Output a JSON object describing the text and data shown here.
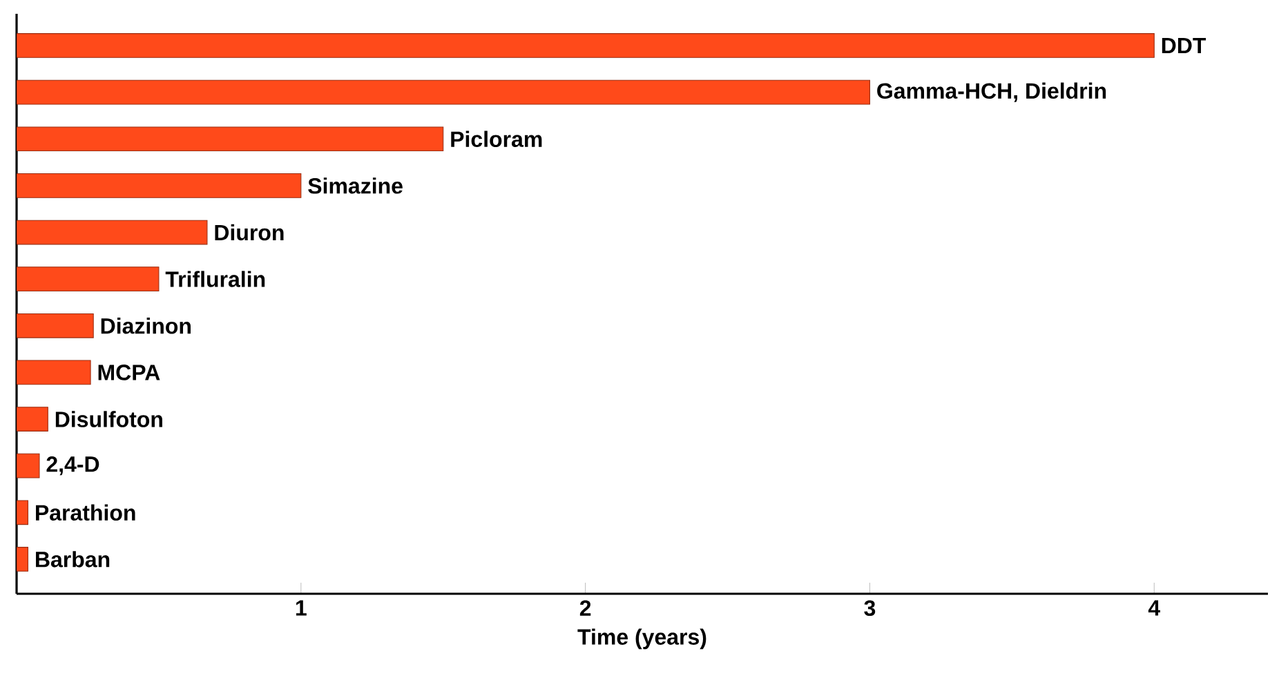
{
  "chart_data": {
    "type": "bar",
    "orientation": "horizontal",
    "xlabel": "Time (years)",
    "categories": [
      "DDT",
      "Gamma-HCH, Dieldrin",
      "Picloram",
      "Simazine",
      "Diuron",
      "Trifluralin",
      "Diazinon",
      "MCPA",
      "Disulfoton",
      "2,4-D",
      "Parathion",
      "Barban"
    ],
    "values": [
      4.0,
      3.0,
      1.5,
      1.0,
      0.67,
      0.5,
      0.27,
      0.26,
      0.11,
      0.08,
      0.04,
      0.04
    ],
    "color": "#ff4a1a",
    "xlim": [
      0,
      4.4
    ],
    "xticks": [
      1,
      2,
      3,
      4
    ],
    "tick_labels": "x",
    "grid": false
  }
}
